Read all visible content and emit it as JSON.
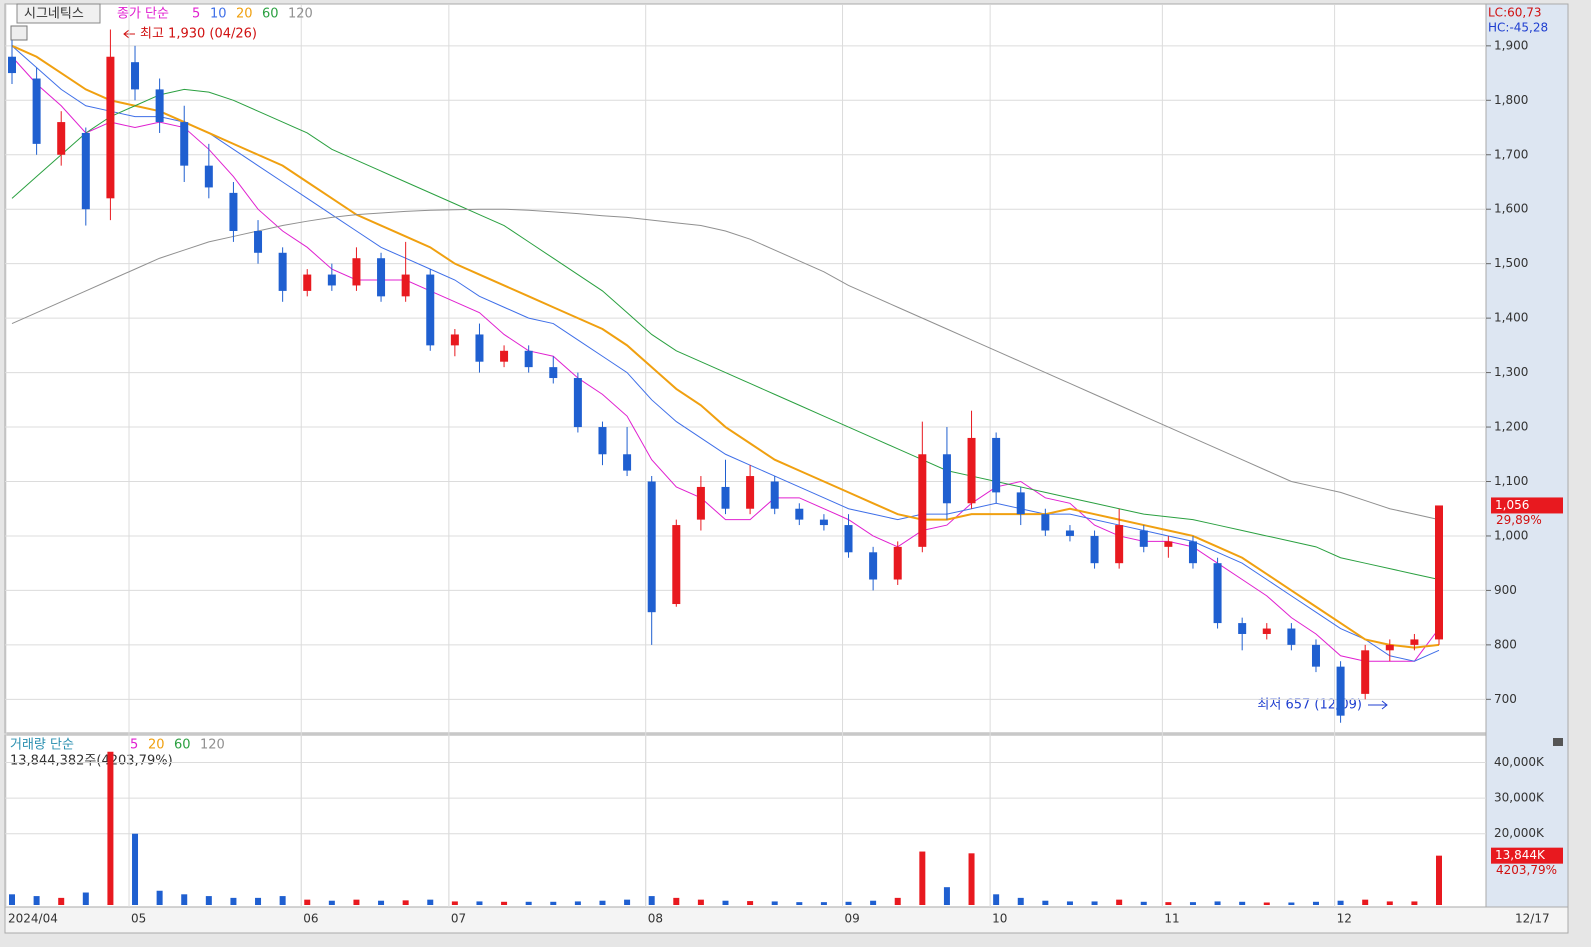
{
  "chart_data": {
    "type": "candlestick",
    "title": "시그네틱스",
    "legend_prefix": "종가 단순",
    "categories": [
      "2024/04",
      null,
      null,
      null,
      null,
      "05",
      null,
      null,
      null,
      null,
      null,
      null,
      "06",
      null,
      null,
      null,
      null,
      null,
      "07",
      null,
      null,
      null,
      null,
      null,
      null,
      null,
      "08",
      null,
      null,
      null,
      null,
      null,
      null,
      null,
      "09",
      null,
      null,
      null,
      null,
      null,
      "10",
      null,
      null,
      null,
      null,
      null,
      null,
      "11",
      null,
      null,
      null,
      null,
      null,
      null,
      "12",
      null,
      null,
      null,
      null
    ],
    "x_end_label": "12/17",
    "up_color": "#e8191f",
    "down_color": "#1f5fd0",
    "ohlc": [
      [
        1880,
        1910,
        1830,
        1850
      ],
      [
        1840,
        1860,
        1700,
        1720
      ],
      [
        1700,
        1780,
        1680,
        1760
      ],
      [
        1740,
        1750,
        1570,
        1600
      ],
      [
        1620,
        1930,
        1580,
        1880
      ],
      [
        1870,
        1900,
        1800,
        1820
      ],
      [
        1820,
        1840,
        1740,
        1760
      ],
      [
        1760,
        1790,
        1650,
        1680
      ],
      [
        1680,
        1720,
        1620,
        1640
      ],
      [
        1630,
        1650,
        1540,
        1560
      ],
      [
        1560,
        1580,
        1500,
        1520
      ],
      [
        1520,
        1530,
        1430,
        1450
      ],
      [
        1450,
        1490,
        1440,
        1480
      ],
      [
        1480,
        1500,
        1450,
        1460
      ],
      [
        1460,
        1530,
        1450,
        1510
      ],
      [
        1510,
        1520,
        1430,
        1440
      ],
      [
        1440,
        1540,
        1430,
        1480
      ],
      [
        1480,
        1490,
        1340,
        1350
      ],
      [
        1350,
        1380,
        1330,
        1370
      ],
      [
        1370,
        1390,
        1300,
        1320
      ],
      [
        1320,
        1350,
        1310,
        1340
      ],
      [
        1340,
        1350,
        1300,
        1310
      ],
      [
        1310,
        1330,
        1280,
        1290
      ],
      [
        1290,
        1300,
        1190,
        1200
      ],
      [
        1200,
        1210,
        1130,
        1150
      ],
      [
        1150,
        1200,
        1110,
        1120
      ],
      [
        1100,
        1110,
        800,
        860
      ],
      [
        875,
        1030,
        870,
        1020
      ],
      [
        1030,
        1110,
        1010,
        1090
      ],
      [
        1090,
        1140,
        1040,
        1050
      ],
      [
        1050,
        1130,
        1040,
        1110
      ],
      [
        1100,
        1110,
        1040,
        1050
      ],
      [
        1050,
        1060,
        1020,
        1030
      ],
      [
        1030,
        1040,
        1010,
        1020
      ],
      [
        1020,
        1040,
        960,
        970
      ],
      [
        970,
        980,
        900,
        920
      ],
      [
        920,
        990,
        910,
        980
      ],
      [
        980,
        1210,
        970,
        1150
      ],
      [
        1150,
        1200,
        1030,
        1060
      ],
      [
        1060,
        1230,
        1050,
        1180
      ],
      [
        1180,
        1190,
        1060,
        1080
      ],
      [
        1080,
        1090,
        1020,
        1040
      ],
      [
        1040,
        1050,
        1000,
        1010
      ],
      [
        1010,
        1020,
        990,
        1000
      ],
      [
        1000,
        1010,
        940,
        950
      ],
      [
        950,
        1050,
        940,
        1020
      ],
      [
        1010,
        1020,
        970,
        980
      ],
      [
        980,
        1000,
        960,
        990
      ],
      [
        990,
        1000,
        940,
        950
      ],
      [
        950,
        960,
        830,
        840
      ],
      [
        840,
        850,
        790,
        820
      ],
      [
        820,
        840,
        810,
        830
      ],
      [
        830,
        840,
        790,
        800
      ],
      [
        800,
        810,
        750,
        760
      ],
      [
        760,
        770,
        657,
        670
      ],
      [
        710,
        800,
        700,
        790
      ],
      [
        790,
        810,
        770,
        800
      ],
      [
        800,
        820,
        790,
        810
      ],
      [
        810,
        1056,
        800,
        1056
      ]
    ],
    "ma": [
      {
        "name": "5",
        "color": "#e020d0",
        "values": [
          1880,
          1830,
          1790,
          1740,
          1760,
          1750,
          1760,
          1750,
          1710,
          1660,
          1600,
          1560,
          1530,
          1490,
          1470,
          1470,
          1470,
          1450,
          1430,
          1410,
          1370,
          1340,
          1330,
          1290,
          1260,
          1220,
          1140,
          1090,
          1070,
          1030,
          1030,
          1070,
          1070,
          1050,
          1030,
          1000,
          980,
          1010,
          1020,
          1060,
          1090,
          1100,
          1070,
          1060,
          1020,
          1000,
          990,
          990,
          980,
          950,
          920,
          890,
          850,
          820,
          780,
          770,
          770,
          770,
          830
        ]
      },
      {
        "name": "10",
        "color": "#3f6fe8",
        "values": [
          1900,
          1860,
          1820,
          1790,
          1780,
          1770,
          1770,
          1760,
          1740,
          1710,
          1680,
          1650,
          1620,
          1590,
          1560,
          1530,
          1510,
          1490,
          1470,
          1440,
          1420,
          1400,
          1390,
          1360,
          1330,
          1300,
          1250,
          1210,
          1180,
          1150,
          1130,
          1110,
          1090,
          1070,
          1050,
          1040,
          1030,
          1040,
          1040,
          1050,
          1060,
          1050,
          1040,
          1040,
          1030,
          1020,
          1010,
          1000,
          990,
          970,
          950,
          920,
          890,
          860,
          830,
          810,
          780,
          770,
          790
        ]
      },
      {
        "name": "20",
        "color": "#f0a010",
        "values": [
          1900,
          1880,
          1850,
          1820,
          1800,
          1790,
          1780,
          1760,
          1740,
          1720,
          1700,
          1680,
          1650,
          1620,
          1590,
          1570,
          1550,
          1530,
          1500,
          1480,
          1460,
          1440,
          1420,
          1400,
          1380,
          1350,
          1310,
          1270,
          1240,
          1200,
          1170,
          1140,
          1120,
          1100,
          1080,
          1060,
          1040,
          1030,
          1030,
          1040,
          1040,
          1040,
          1040,
          1050,
          1040,
          1030,
          1020,
          1010,
          1000,
          980,
          960,
          930,
          900,
          870,
          840,
          810,
          800,
          795,
          800
        ]
      },
      {
        "name": "60",
        "color": "#2aa040",
        "values": [
          1620,
          1660,
          1700,
          1740,
          1770,
          1790,
          1810,
          1820,
          1815,
          1800,
          1780,
          1760,
          1740,
          1710,
          1690,
          1670,
          1650,
          1630,
          1610,
          1590,
          1570,
          1540,
          1510,
          1480,
          1450,
          1410,
          1370,
          1340,
          1320,
          1300,
          1280,
          1260,
          1240,
          1220,
          1200,
          1180,
          1160,
          1140,
          1120,
          1110,
          1100,
          1090,
          1080,
          1070,
          1060,
          1050,
          1040,
          1035,
          1030,
          1020,
          1010,
          1000,
          990,
          980,
          960,
          950,
          940,
          930,
          920
        ]
      },
      {
        "name": "120",
        "color": "#909090",
        "values": [
          1390,
          1410,
          1430,
          1450,
          1470,
          1490,
          1510,
          1525,
          1540,
          1550,
          1560,
          1570,
          1578,
          1585,
          1590,
          1593,
          1596,
          1598,
          1599,
          1600,
          1600,
          1598,
          1595,
          1592,
          1588,
          1585,
          1580,
          1575,
          1570,
          1560,
          1545,
          1525,
          1505,
          1485,
          1460,
          1440,
          1420,
          1400,
          1380,
          1360,
          1340,
          1320,
          1300,
          1280,
          1260,
          1240,
          1220,
          1200,
          1180,
          1160,
          1140,
          1120,
          1100,
          1090,
          1080,
          1065,
          1050,
          1040,
          1030
        ]
      }
    ],
    "ylim": [
      640,
      1975
    ],
    "yticks": [
      700,
      800,
      900,
      {
        "value": 1000,
        "label": "1,000"
      },
      {
        "value": 1100,
        "label": "1,100"
      },
      {
        "value": 1200,
        "label": "1,200"
      },
      {
        "value": 1300,
        "label": "1,300"
      },
      {
        "value": 1400,
        "label": "1,400"
      },
      {
        "value": 1500,
        "label": "1,500"
      },
      {
        "value": 1600,
        "label": "1,600"
      },
      {
        "value": 1700,
        "label": "1,700"
      },
      {
        "value": 1800,
        "label": "1,800"
      },
      {
        "value": 1900,
        "label": "1,900"
      }
    ],
    "grid": true,
    "high_note": "최고 1,930 (04/26)",
    "low_note": "최저 657 (12/09)",
    "lc": "LC:60,73",
    "hc": "HC:-45,28",
    "last_label": "1,056",
    "change_label": "29,89%",
    "volume": {
      "title": "거래량 단순",
      "legend": [
        {
          "name": "5",
          "color": "#e020d0"
        },
        {
          "name": "20",
          "color": "#f0a010"
        },
        {
          "name": "60",
          "color": "#2aa040"
        },
        {
          "name": "120",
          "color": "#909090"
        }
      ],
      "info": "13,844,382주(4203,79%)",
      "values": [
        3000,
        2500,
        2000,
        3500,
        43000,
        20000,
        4000,
        3000,
        2500,
        2000,
        2000,
        2500,
        1500,
        1200,
        1500,
        1200,
        1300,
        1500,
        1000,
        1000,
        900,
        900,
        900,
        1000,
        1200,
        1500,
        2500,
        2000,
        1500,
        1200,
        1100,
        1000,
        800,
        800,
        900,
        1200,
        2000,
        15000,
        5000,
        14500,
        3000,
        2000,
        1200,
        1000,
        1000,
        1500,
        900,
        800,
        800,
        1000,
        900,
        700,
        700,
        900,
        1200,
        1500,
        1000,
        1000,
        13844
      ],
      "ylim": [
        0,
        47700
      ],
      "yticks": [
        {
          "value": 20000,
          "label": "20,000K"
        },
        {
          "value": 30000,
          "label": "30,000K"
        },
        {
          "value": 40000,
          "label": "40,000K"
        }
      ],
      "last_label": "13,844K",
      "ratio_label": "4203,79%"
    }
  }
}
